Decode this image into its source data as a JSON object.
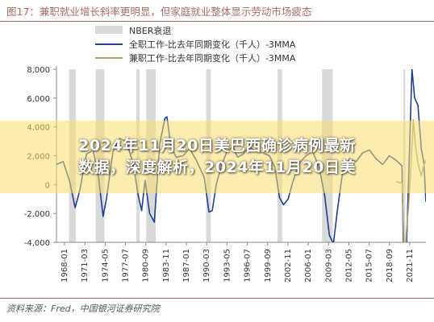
{
  "header": {
    "title": "图17：兼职就业增长斜率更明显，但家庭就业整体显示劳动市场疲态"
  },
  "overlay": {
    "line1": "2024年11月20日美巴西确诊病例最新",
    "line2": "数据，深度解析，2024年11月20日美"
  },
  "source": "资料来源：Fred，中国银河证券研究院",
  "chart_data": {
    "type": "line",
    "title": "",
    "ylim": [
      -4000,
      8000
    ],
    "yticks": [
      -4000,
      -2000,
      0,
      2000,
      4000,
      6000,
      8000
    ],
    "ytick_labels": [
      "-4,000",
      "-2,000",
      "0",
      "2,000",
      "4,000",
      "6,000",
      "8,000"
    ],
    "xlim": [
      1968.0,
      2023.5
    ],
    "xtick_labels": [
      "1968-01",
      "1971-03",
      "1974-05",
      "1977-07",
      "1980-09",
      "1983-11",
      "1987-01",
      "1990-03",
      "1993-05",
      "1996-07",
      "1999-09",
      "2002-11",
      "2006-01",
      "2009-03",
      "2012-05",
      "2015-07",
      "2018-09",
      "2021-11"
    ],
    "legend": [
      {
        "name": "NBER衰退",
        "kind": "band",
        "color": "#d9d9d9"
      },
      {
        "name": "全职工作-比去年同期变化（千人）-3MMA",
        "kind": "line",
        "color": "#1f3e94"
      },
      {
        "name": "兼职工作-比去年同期变化（千人）-3MMA",
        "kind": "line",
        "color": "#b8a17a"
      }
    ],
    "recessions": [
      [
        1969.9,
        1970.9
      ],
      [
        1973.9,
        1975.2
      ],
      [
        1980.0,
        1980.5
      ],
      [
        1981.5,
        1982.9
      ],
      [
        1990.5,
        1991.2
      ],
      [
        2001.2,
        2001.9
      ],
      [
        2007.9,
        2009.5
      ],
      [
        2020.1,
        2020.4
      ]
    ],
    "series": [
      {
        "name": "全职工作-比去年同期变化（千人）-3MMA",
        "color": "#1f3e94",
        "x": [
          1968.0,
          1969.0,
          1970.0,
          1970.8,
          1971.5,
          1972.5,
          1973.5,
          1974.3,
          1975.0,
          1975.5,
          1976.5,
          1977.5,
          1978.5,
          1979.5,
          1980.3,
          1980.8,
          1981.3,
          1982.0,
          1982.7,
          1983.5,
          1984.3,
          1984.6,
          1985.2,
          1986.0,
          1987.0,
          1988.0,
          1989.0,
          1990.2,
          1990.9,
          1991.4,
          1992.0,
          1992.7,
          1993.6,
          1994.5,
          1995.2,
          1996.0,
          1997.0,
          1998.0,
          1999.0,
          2000.0,
          2000.8,
          2001.5,
          2002.1,
          2002.8,
          2003.5,
          2004.5,
          2005.5,
          2006.5,
          2007.5,
          2008.3,
          2009.0,
          2009.6,
          2010.2,
          2011.0,
          2012.0,
          2013.0,
          2014.0,
          2015.0,
          2016.0,
          2017.0,
          2018.0,
          2019.0,
          2019.9,
          2020.3,
          2020.6,
          2021.0,
          2021.4,
          2021.8,
          2022.3,
          2022.8,
          2023.2,
          2023.5
        ],
        "y": [
          1400,
          1600,
          200,
          -1600,
          -400,
          2100,
          2400,
          600,
          -2200,
          -1000,
          2300,
          3200,
          3000,
          1500,
          -800,
          -1800,
          300,
          -2000,
          -2600,
          2800,
          4600,
          4700,
          2600,
          1900,
          2000,
          2500,
          1700,
          500,
          -1900,
          -1800,
          0,
          1200,
          2300,
          2600,
          1900,
          2100,
          2600,
          2300,
          2200,
          2000,
          1200,
          -900,
          -1400,
          -1000,
          200,
          1500,
          2000,
          2300,
          1100,
          -800,
          -3500,
          -4100,
          -1800,
          900,
          1800,
          1600,
          2200,
          2400,
          1800,
          1400,
          2000,
          1700,
          1300,
          -9000,
          -4000,
          2000,
          8000,
          6000,
          5500,
          2500,
          1500,
          -1200
        ]
      },
      {
        "name": "兼职工作-比去年同期变化（千人）-3MMA",
        "color": "#b8a17a",
        "x": [
          2019.0,
          2019.9,
          2020.3,
          2020.6,
          2020.9,
          2021.2,
          2021.6,
          2021.9,
          2022.3,
          2022.8,
          2023.1,
          2023.5
        ],
        "y": [
          200,
          100,
          -5500,
          -3000,
          -1500,
          900,
          4500,
          2800,
          1500,
          600,
          1200,
          1700
        ]
      }
    ]
  }
}
